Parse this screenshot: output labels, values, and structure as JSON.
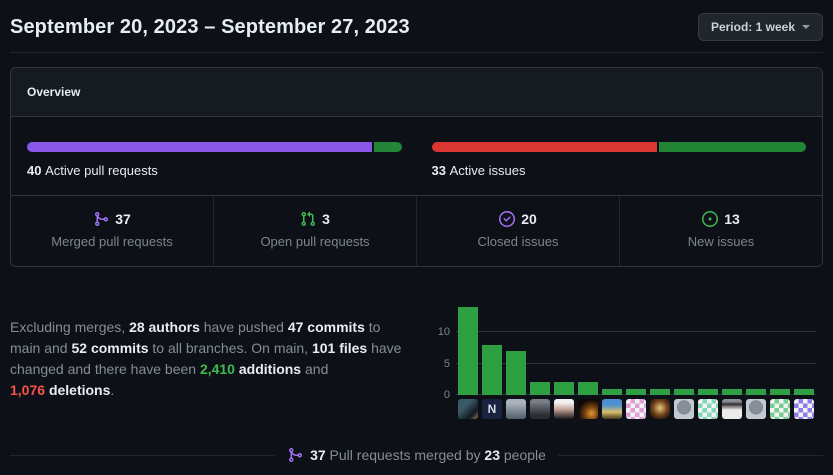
{
  "page": {
    "title": "September 20, 2023 – September 27, 2023",
    "period_button": {
      "label": "Period: 1 week",
      "icon": "caret-down-icon"
    }
  },
  "overview": {
    "heading": "Overview",
    "pull_requests": {
      "label_segments": [
        {
          "text": "40 ",
          "style": "bold"
        },
        {
          "text": "Active pull requests"
        }
      ],
      "progress": [
        {
          "color": "#8957e5",
          "pct": 92.5
        },
        {
          "color": "#238636",
          "pct": 7.5
        }
      ]
    },
    "issues": {
      "label_segments": [
        {
          "text": "33 ",
          "style": "bold"
        },
        {
          "text": "Active issues"
        }
      ],
      "progress": [
        {
          "color": "#da3633",
          "pct": 60.6
        },
        {
          "color": "#238636",
          "pct": 39.4
        }
      ]
    },
    "stats": [
      {
        "icon": "git-merge-icon",
        "color": "#a371f7",
        "value": "37",
        "label": "Merged pull requests"
      },
      {
        "icon": "git-pull-request-icon",
        "color": "#3fb950",
        "value": "3",
        "label": "Open pull requests"
      },
      {
        "icon": "issue-closed-icon",
        "color": "#a371f7",
        "value": "20",
        "label": "Closed issues"
      },
      {
        "icon": "issue-opened-icon",
        "color": "#3fb950",
        "value": "13",
        "label": "New issues"
      }
    ]
  },
  "summary": {
    "segments": [
      {
        "text": "Excluding merges, "
      },
      {
        "text": "28 authors",
        "style": "bold"
      },
      {
        "text": " have pushed "
      },
      {
        "text": "47 commits",
        "style": "bold"
      },
      {
        "text": " to"
      },
      {
        "break": true
      },
      {
        "text": "main and "
      },
      {
        "text": "52 commits",
        "style": "bold"
      },
      {
        "text": " to all branches. On main, "
      },
      {
        "text": "101 files",
        "style": "bold"
      },
      {
        "text": " have"
      },
      {
        "break": true
      },
      {
        "text": "changed and there have been "
      },
      {
        "text": "2,410",
        "style": "green-bold"
      },
      {
        "text": " "
      },
      {
        "text": "additions",
        "style": "bold"
      },
      {
        "text": " and"
      },
      {
        "break": true
      },
      {
        "text": "1,076",
        "style": "red-bold"
      },
      {
        "text": " "
      },
      {
        "text": "deletions",
        "style": "bold"
      },
      {
        "text": "."
      }
    ]
  },
  "chart_data": {
    "type": "bar",
    "x_axis": "contributor avatars (15 contributors)",
    "ylabel": "commits",
    "values": [
      14,
      8,
      7,
      2,
      2,
      2,
      1,
      1,
      1,
      1,
      1,
      1,
      1,
      1,
      1
    ],
    "bar_color": "#2ea043",
    "yticks": [
      0,
      5,
      10
    ],
    "ylim": [
      0,
      14.5
    ],
    "grid": true,
    "legend": "none",
    "avatars": [
      {
        "name": "contributor-avatar-1",
        "bg": "linear-gradient(135deg,#3b5a68 35%,#11181f 75%,#8a7a5e)"
      },
      {
        "name": "contributor-avatar-2",
        "bg": "#19233f",
        "glyph": "N",
        "fg": "#d8dee9"
      },
      {
        "name": "contributor-avatar-3",
        "bg": "linear-gradient(180deg,#a9b2bd 20%,#545e6a)"
      },
      {
        "name": "contributor-avatar-4",
        "bg": "linear-gradient(180deg,#787d86 15%,#2b2e35 80%)"
      },
      {
        "name": "contributor-avatar-5",
        "bg": "linear-gradient(180deg,#f1f2f4 18%,#caa79a 50%,#1a181d)"
      },
      {
        "name": "contributor-avatar-6",
        "bg": "radial-gradient(circle at 68% 72%,#e8952f,#713f0f 35%,#0b0805 70%)"
      },
      {
        "name": "contributor-avatar-7",
        "bg": "linear-gradient(180deg,#4d8fd0 30%,#d9c06c 65%,#43351d)"
      },
      {
        "name": "contributor-avatar-8",
        "bg": "#f2f2f2",
        "pattern": "#de9fd8"
      },
      {
        "name": "contributor-avatar-9",
        "bg": "radial-gradient(circle at 50% 45%,#e9c97c,#7c4b20 45%,#171009 85%)"
      },
      {
        "name": "contributor-avatar-10",
        "bg": "radial-gradient(circle at 50% 42%,#868e97 46%,#c2c9d1 48%)"
      },
      {
        "name": "contributor-avatar-11",
        "bg": "#f2f2f2",
        "pattern": "#7ed9b4"
      },
      {
        "name": "contributor-avatar-12",
        "bg": "linear-gradient(180deg,#8a9199 12%,#35302f 26%,#edecea 55%)"
      },
      {
        "name": "contributor-avatar-13",
        "bg": "radial-gradient(circle at 50% 42%,#868e97 46%,#c2c9d1 48%)"
      },
      {
        "name": "contributor-avatar-14",
        "bg": "#f2f2f2",
        "pattern": "#76cf90"
      },
      {
        "name": "contributor-avatar-15",
        "bg": "#f2f2f2",
        "pattern": "#8d7de6"
      }
    ]
  },
  "footer": {
    "icon": "git-merge-icon",
    "icon_color": "#a371f7",
    "segments": [
      {
        "text": "37",
        "style": "bold"
      },
      {
        "text": " Pull requests merged by "
      },
      {
        "text": "23",
        "style": "bold"
      },
      {
        "text": " people"
      }
    ]
  }
}
